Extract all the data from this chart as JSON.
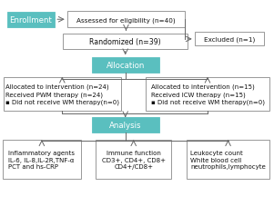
{
  "bg_color": "#ffffff",
  "teal_color": "#5abfbf",
  "box_edge_color": "#888888",
  "arrow_color": "#666666",
  "enrollment_label": "Enrollment",
  "box1_text": "Assessed for eligibility (n=40)",
  "box2_text": "Excluded (n=1)",
  "box3_text": "Randomized (n=39)",
  "allocation_label": "Allocation",
  "box_left_text": "Allocated to intervention (n=24)\nReceived PWM therapy (n=24)\n▪ Did not receive WM therapy(n=0)",
  "box_right_text": "Allocated to intervention (n=15)\nReceived ICW therapy (n=15)\n▪ Did not receive WM therapy(n=0)",
  "analysis_label": "Analysis",
  "box_a1_text": "Inflammatory agents\nIL-6, IL-8,IL-2R,TNF-α\nPCT and hs-CRP",
  "box_a2_text": "Immune function\nCD3+, CD4+, CD8+\nCD4+/CD8+",
  "box_a3_text": "Leukocyte count\nWhite blood cell\nneutrophils,lymphocyte",
  "fs": 5.2,
  "fl": 6.2
}
